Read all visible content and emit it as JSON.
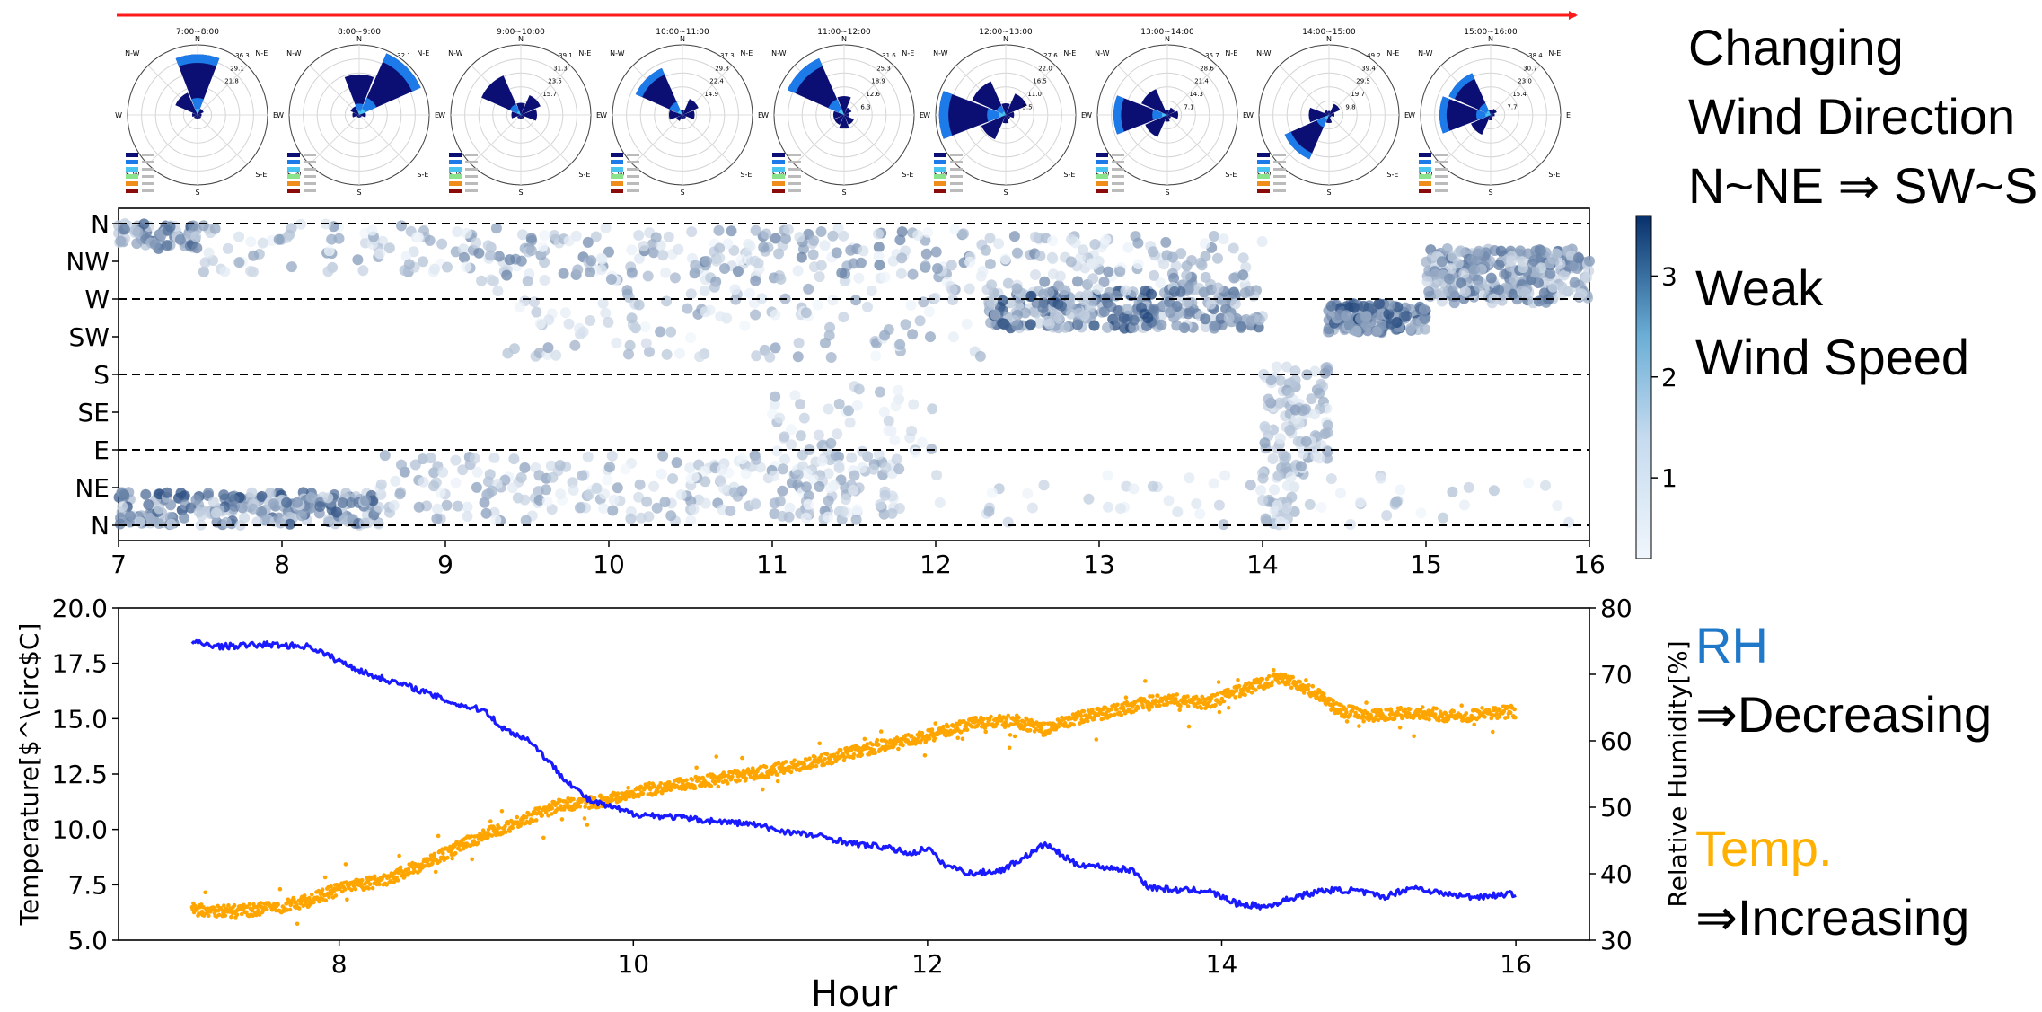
{
  "annotations": {
    "wind_direction_lines": [
      "Changing",
      "Wind Direction",
      "N~NE ⇒ SW~S"
    ],
    "wind_speed_lines": [
      "Weak",
      "Wind Speed"
    ],
    "rh_title": "RH",
    "rh_trend": "⇒Decreasing",
    "temp_title": "Temp.",
    "temp_trend": "⇒Increasing"
  },
  "colors": {
    "timeline_arrow": "#ff1a1a",
    "rh_line": "#1a1aff",
    "temp_points": "#ffa500",
    "rh_text": "#1f78c8",
    "temp_text": "#ffb000",
    "rose_bins": [
      "#0b0f73",
      "#1c7be8",
      "#49c3f0",
      "#8be38b",
      "#f08c1a",
      "#8b0b0b"
    ],
    "colormap_low": "#f0f6fc",
    "colormap_high": "#08306b"
  },
  "chart_data": [
    {
      "type": "wind-rose",
      "panels": [
        {
          "title": "7:00~8:00",
          "rings": [
            "36.3",
            "29.1",
            "21.8"
          ],
          "dirs": [
            4.5,
            0.5,
            0.3,
            0.3,
            0.3,
            0.3,
            0.4,
            1.8
          ],
          "max": 5.2
        },
        {
          "title": "8:00~9:00",
          "rings": [
            "32.1"
          ],
          "dirs": [
            3.0,
            5.0,
            0.5,
            0.2,
            0.2,
            0.2,
            0.5,
            0.7
          ],
          "max": 5.2
        },
        {
          "title": "9:00~10:00",
          "rings": [
            "39.1",
            "31.3",
            "23.5",
            "15.7"
          ],
          "dirs": [
            0.9,
            1.6,
            1.2,
            0.3,
            0.3,
            0.3,
            0.7,
            3.2
          ],
          "max": 5.2
        },
        {
          "title": "10:00~11:00",
          "rings": [
            "37.3",
            "29.8",
            "22.4",
            "14.9"
          ],
          "dirs": [
            0.4,
            1.3,
            0.9,
            0.3,
            0.3,
            0.5,
            1.0,
            3.8
          ],
          "max": 5.2
        },
        {
          "title": "11:00~12:00",
          "rings": [
            "31.6",
            "25.3",
            "18.9",
            "12.6",
            "6.3"
          ],
          "dirs": [
            1.4,
            0.6,
            0.4,
            0.8,
            1.0,
            0.8,
            0.8,
            4.6
          ],
          "max": 5.2
        },
        {
          "title": "12:00~13:00",
          "rings": [
            "27.6",
            "22.0",
            "16.5",
            "11.0",
            "5.5"
          ],
          "dirs": [
            0.7,
            1.4,
            0.5,
            0.3,
            0.5,
            1.6,
            4.0,
            2.2
          ],
          "max": 4.2
        },
        {
          "title": "13:00~14:00",
          "rings": [
            "35.7",
            "28.6",
            "21.4",
            "14.3",
            "7.1"
          ],
          "dirs": [
            0.4,
            0.6,
            0.8,
            0.3,
            0.5,
            1.8,
            4.0,
            2.1
          ],
          "max": 5.2
        },
        {
          "title": "14:00~15:00",
          "rings": [
            "49.2",
            "39.4",
            "29.5",
            "19.7",
            "9.8"
          ],
          "dirs": [
            0.3,
            0.9,
            0.4,
            0.2,
            0.6,
            3.6,
            1.5,
            0.4
          ],
          "max": 5.2
        },
        {
          "title": "15:00~16:00",
          "rings": [
            "38.4",
            "30.7",
            "23.0",
            "15.4",
            "7.7"
          ],
          "dirs": [
            0.4,
            0.5,
            0.3,
            0.2,
            0.4,
            1.6,
            3.8,
            3.4
          ],
          "max": 5.2
        }
      ],
      "direction_labels": [
        "N",
        "N-E",
        "E",
        "S-E",
        "S",
        "S-W",
        "W",
        "N-W"
      ]
    },
    {
      "type": "scatter",
      "x_ticks": [
        "7",
        "8",
        "9",
        "10",
        "11",
        "12",
        "13",
        "14",
        "15",
        "16"
      ],
      "xlim": [
        7,
        16
      ],
      "y_ticks": [
        "N",
        "NW",
        "W",
        "SW",
        "S",
        "SE",
        "E",
        "NE",
        "N"
      ],
      "ylim": [
        0,
        360
      ],
      "dashed_lines_deg": [
        0,
        90,
        180,
        270,
        360
      ],
      "color_ticks": [
        "1",
        "2",
        "3"
      ],
      "color_range": [
        0.2,
        3.6
      ],
      "clusters": [
        {
          "t0": 7.0,
          "t1": 7.5,
          "d0": 330,
          "d1": 360,
          "s0": 0.5,
          "s1": 2.6,
          "n": 70
        },
        {
          "t0": 7.0,
          "t1": 8.6,
          "d0": 0,
          "d1": 40,
          "s0": 0.5,
          "s1": 3.2,
          "n": 230
        },
        {
          "t0": 7.5,
          "t1": 9.0,
          "d0": 300,
          "d1": 360,
          "s0": 0.2,
          "s1": 1.6,
          "n": 70
        },
        {
          "t0": 8.6,
          "t1": 11.8,
          "d0": 5,
          "d1": 85,
          "s0": 0.2,
          "s1": 1.5,
          "n": 260
        },
        {
          "t0": 9.0,
          "t1": 12.3,
          "d0": 290,
          "d1": 355,
          "s0": 0.2,
          "s1": 2.0,
          "n": 220
        },
        {
          "t0": 9.3,
          "t1": 12.3,
          "d0": 200,
          "d1": 285,
          "s0": 0.2,
          "s1": 1.4,
          "n": 120
        },
        {
          "t0": 11.0,
          "t1": 12.0,
          "d0": 60,
          "d1": 170,
          "s0": 0.2,
          "s1": 1.2,
          "n": 60
        },
        {
          "t0": 12.3,
          "t1": 13.4,
          "d0": 235,
          "d1": 280,
          "s0": 0.5,
          "s1": 3.2,
          "n": 190
        },
        {
          "t0": 12.3,
          "t1": 14.0,
          "d0": 280,
          "d1": 345,
          "s0": 0.2,
          "s1": 1.8,
          "n": 110
        },
        {
          "t0": 13.4,
          "t1": 14.0,
          "d0": 235,
          "d1": 285,
          "s0": 0.5,
          "s1": 2.5,
          "n": 90
        },
        {
          "t0": 14.0,
          "t1": 14.4,
          "d0": 60,
          "d1": 190,
          "s0": 0.3,
          "s1": 1.5,
          "n": 110
        },
        {
          "t0": 14.0,
          "t1": 14.2,
          "d0": 0,
          "d1": 60,
          "s0": 0.3,
          "s1": 1.2,
          "n": 30
        },
        {
          "t0": 14.4,
          "t1": 15.0,
          "d0": 230,
          "d1": 265,
          "s0": 1.0,
          "s1": 3.4,
          "n": 140
        },
        {
          "t0": 15.0,
          "t1": 16.0,
          "d0": 265,
          "d1": 330,
          "s0": 0.5,
          "s1": 2.4,
          "n": 280
        },
        {
          "t0": 12.0,
          "t1": 16.0,
          "d0": 0,
          "d1": 60,
          "s0": 0.2,
          "s1": 1.0,
          "n": 60
        }
      ]
    },
    {
      "type": "line",
      "xlabel": "Hour",
      "ylabel_left": "Temperature[$^\\circ$C]",
      "ylabel_right": "Relative Humidity[%]",
      "xlim": [
        6.5,
        16.5
      ],
      "ylim_left": [
        5.0,
        20.0
      ],
      "ylim_right": [
        30,
        80
      ],
      "x_ticks": [
        "8",
        "10",
        "12",
        "14",
        "16"
      ],
      "y_ticks_left": [
        "5.0",
        "7.5",
        "10.0",
        "12.5",
        "15.0",
        "17.5",
        "20.0"
      ],
      "y_ticks_right": [
        "30",
        "40",
        "50",
        "60",
        "70",
        "80"
      ],
      "series": [
        {
          "name": "RH",
          "x": [
            7.0,
            7.2,
            7.5,
            7.8,
            8.0,
            8.2,
            8.5,
            8.8,
            9.0,
            9.1,
            9.3,
            9.5,
            9.7,
            10.0,
            10.3,
            10.5,
            10.8,
            11.0,
            11.3,
            11.5,
            11.7,
            11.9,
            12.0,
            12.1,
            12.3,
            12.5,
            12.7,
            12.8,
            13.0,
            13.2,
            13.4,
            13.5,
            13.7,
            13.9,
            14.1,
            14.3,
            14.5,
            14.7,
            14.9,
            15.1,
            15.3,
            15.5,
            15.7,
            16.0
          ],
          "y": [
            74.8,
            74.2,
            74.5,
            74.2,
            72,
            70,
            68,
            65.5,
            64.5,
            62,
            60,
            55,
            51,
            49,
            48.5,
            48,
            47.5,
            46.5,
            45.5,
            44.5,
            44,
            43,
            44,
            41.5,
            40,
            40.5,
            43,
            44.5,
            41.5,
            41,
            40.5,
            38,
            37.5,
            37.5,
            35.5,
            35,
            36.5,
            37.5,
            37.5,
            36.5,
            38,
            37,
            36.5,
            37
          ]
        },
        {
          "name": "Temp.",
          "x": [
            7.0,
            7.3,
            7.6,
            7.8,
            8.0,
            8.3,
            8.6,
            8.9,
            9.2,
            9.5,
            9.8,
            10.0,
            10.3,
            10.6,
            10.9,
            11.2,
            11.5,
            11.8,
            12.0,
            12.3,
            12.6,
            12.8,
            13.0,
            13.3,
            13.6,
            13.9,
            14.1,
            14.4,
            14.6,
            14.8,
            15.0,
            15.3,
            15.6,
            15.9,
            16.0
          ],
          "y": [
            6.4,
            6.3,
            6.5,
            6.8,
            7.3,
            7.7,
            8.5,
            9.5,
            10.3,
            11.1,
            11.3,
            11.7,
            12.0,
            12.3,
            12.6,
            13.0,
            13.5,
            13.9,
            14.2,
            14.8,
            14.9,
            14.5,
            15.0,
            15.4,
            15.9,
            15.7,
            16.2,
            16.9,
            16.3,
            15.4,
            15.1,
            15.3,
            15.1,
            15.3,
            15.3
          ]
        }
      ]
    }
  ]
}
